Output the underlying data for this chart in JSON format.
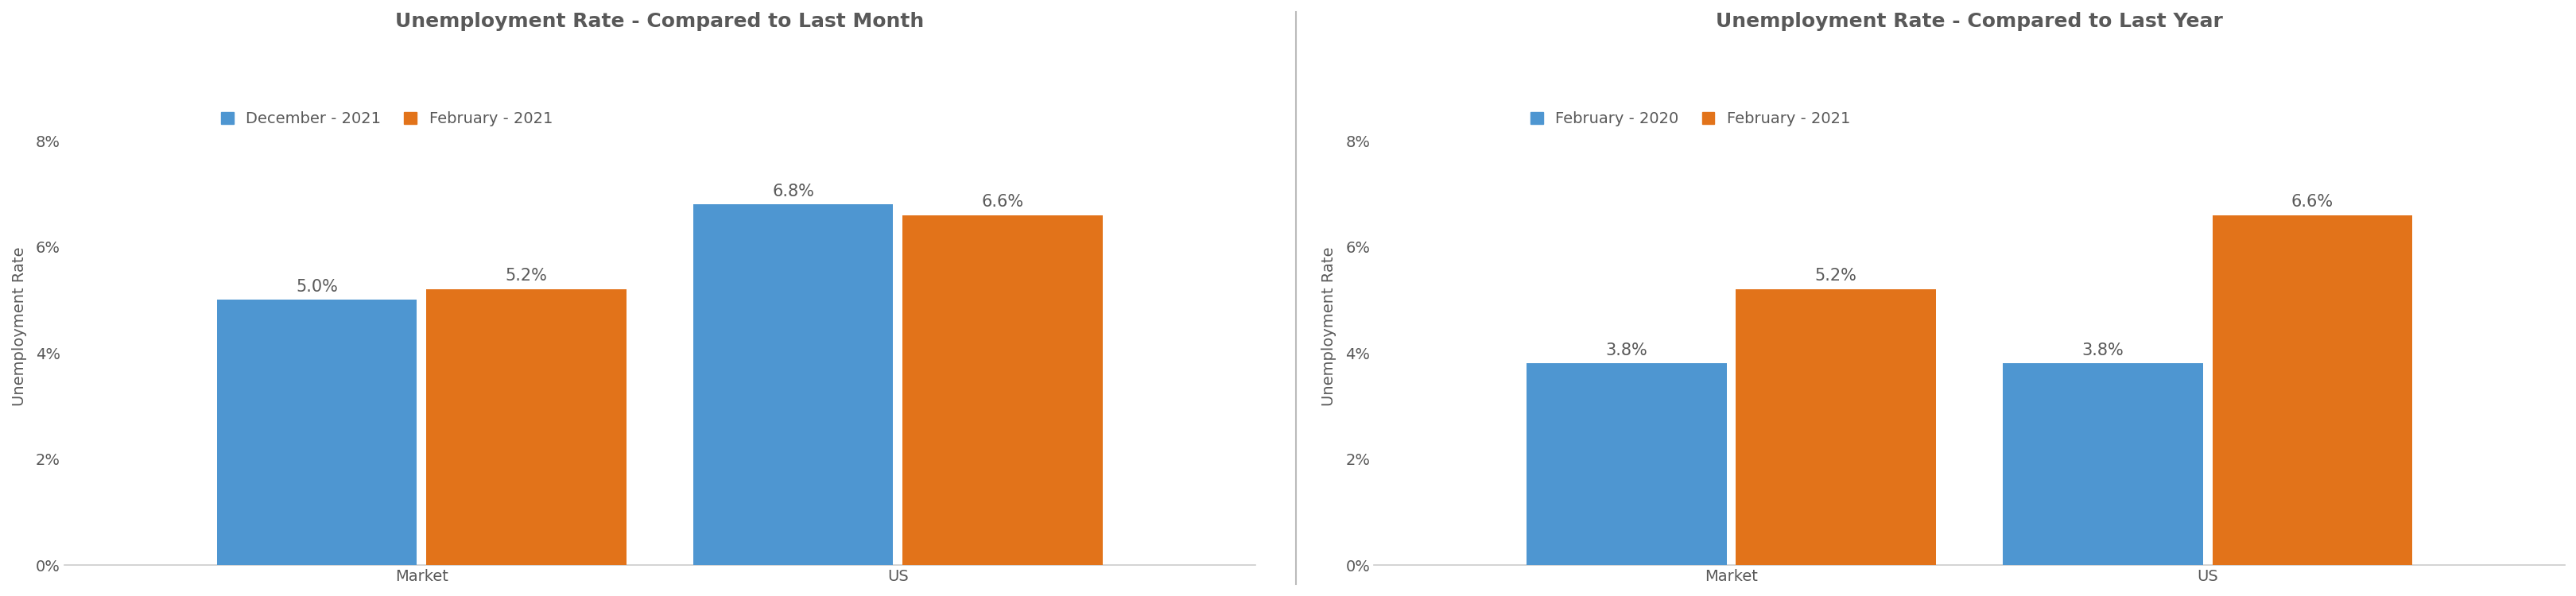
{
  "chart1": {
    "title": "Unemployment Rate - Compared to Last Month",
    "legend_labels": [
      "December - 2021",
      "February - 2021"
    ],
    "categories": [
      "Market",
      "US"
    ],
    "series1_values": [
      5.0,
      6.8
    ],
    "series2_values": [
      5.2,
      6.6
    ],
    "ylabel": "Unemployment Rate",
    "ylim": [
      0,
      9
    ],
    "yticks": [
      0,
      2,
      4,
      6,
      8
    ],
    "ytick_labels": [
      "0%",
      "2%",
      "4%",
      "6%",
      "8%"
    ]
  },
  "chart2": {
    "title": "Unemployment Rate - Compared to Last Year",
    "legend_labels": [
      "February - 2020",
      "February - 2021"
    ],
    "categories": [
      "Market",
      "US"
    ],
    "series1_values": [
      3.8,
      3.8
    ],
    "series2_values": [
      5.2,
      6.6
    ],
    "ylabel": "Unemployment Rate",
    "ylim": [
      0,
      9
    ],
    "yticks": [
      0,
      2,
      4,
      6,
      8
    ],
    "ytick_labels": [
      "0%",
      "2%",
      "4%",
      "6%",
      "8%"
    ]
  },
  "bar_color1": "#4E96D1",
  "bar_color2": "#E2731A",
  "background_color": "#FFFFFF",
  "title_fontsize": 18,
  "tick_fontsize": 14,
  "legend_fontsize": 14,
  "bar_value_fontsize": 15,
  "bar_width": 0.42,
  "bar_gap": 0.02,
  "separator_color": "#CCCCCC",
  "axis_label_fontsize": 14,
  "text_color": "#595959"
}
